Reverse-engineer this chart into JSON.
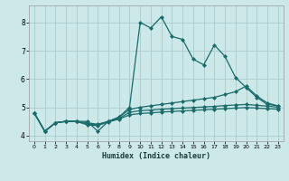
{
  "title": "",
  "xlabel": "Humidex (Indice chaleur)",
  "xlim": [
    -0.5,
    23.5
  ],
  "ylim": [
    3.8,
    8.6
  ],
  "xticks": [
    0,
    1,
    2,
    3,
    4,
    5,
    6,
    7,
    8,
    9,
    10,
    11,
    12,
    13,
    14,
    15,
    16,
    17,
    18,
    19,
    20,
    21,
    22,
    23
  ],
  "yticks": [
    4,
    5,
    6,
    7,
    8
  ],
  "background_color": "#cce8e8",
  "grid_color": "#aacccc",
  "line_color": "#1a6b6b",
  "lines": [
    {
      "x": [
        0,
        1,
        2,
        3,
        4,
        5,
        6,
        7,
        8,
        9,
        10,
        11,
        12,
        13,
        14,
        15,
        16,
        17,
        18,
        19,
        20,
        21,
        22,
        23
      ],
      "y": [
        4.8,
        4.15,
        4.45,
        4.5,
        4.5,
        4.5,
        4.15,
        4.5,
        4.65,
        5.0,
        8.0,
        7.8,
        8.2,
        7.5,
        7.4,
        6.7,
        6.5,
        7.2,
        6.8,
        6.05,
        5.7,
        5.35,
        5.1,
        5.05
      ]
    },
    {
      "x": [
        0,
        1,
        2,
        3,
        4,
        5,
        6,
        7,
        8,
        9,
        10,
        11,
        12,
        13,
        14,
        15,
        16,
        17,
        18,
        19,
        20,
        21,
        22,
        23
      ],
      "y": [
        4.8,
        4.15,
        4.45,
        4.5,
        4.5,
        4.45,
        4.4,
        4.5,
        4.65,
        4.92,
        5.0,
        5.05,
        5.1,
        5.15,
        5.2,
        5.25,
        5.3,
        5.35,
        5.45,
        5.55,
        5.75,
        5.4,
        5.15,
        5.05
      ]
    },
    {
      "x": [
        0,
        1,
        2,
        3,
        4,
        5,
        6,
        7,
        8,
        9,
        10,
        11,
        12,
        13,
        14,
        15,
        16,
        17,
        18,
        19,
        20,
        21,
        22,
        23
      ],
      "y": [
        4.8,
        4.15,
        4.45,
        4.5,
        4.5,
        4.4,
        4.38,
        4.5,
        4.6,
        4.82,
        4.88,
        4.9,
        4.93,
        4.95,
        4.97,
        4.99,
        5.01,
        5.03,
        5.06,
        5.08,
        5.1,
        5.07,
        5.04,
        5.0
      ]
    },
    {
      "x": [
        0,
        1,
        2,
        3,
        4,
        5,
        6,
        7,
        8,
        9,
        10,
        11,
        12,
        13,
        14,
        15,
        16,
        17,
        18,
        19,
        20,
        21,
        22,
        23
      ],
      "y": [
        4.8,
        4.15,
        4.45,
        4.5,
        4.5,
        4.38,
        4.35,
        4.48,
        4.58,
        4.73,
        4.78,
        4.8,
        4.83,
        4.85,
        4.87,
        4.89,
        4.91,
        4.93,
        4.95,
        4.97,
        4.99,
        4.97,
        4.95,
        4.93
      ]
    }
  ]
}
